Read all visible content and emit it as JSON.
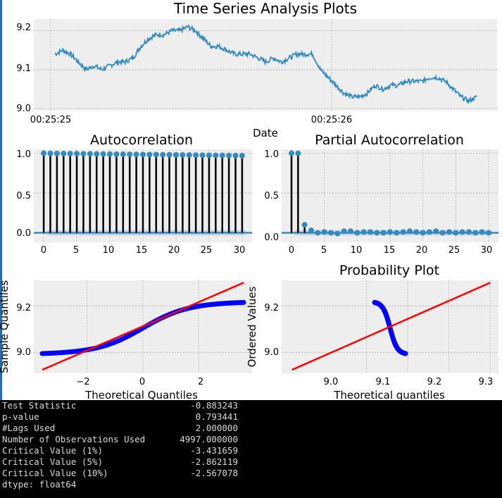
{
  "chart_data": [
    {
      "type": "line",
      "title": "Time Series Analysis Plots",
      "xlabel": "Date",
      "ylabel": "",
      "x_ticks": [
        "00:25:25",
        "00:25:26"
      ],
      "ylim": [
        8.995,
        9.23
      ],
      "y_ticks": [
        9.0,
        9.1,
        9.2
      ],
      "grid": true,
      "series": [
        {
          "values": [
            9.14,
            9.15,
            9.14,
            9.12,
            9.1,
            9.11,
            9.1,
            9.11,
            9.12,
            9.12,
            9.13,
            9.16,
            9.18,
            9.19,
            9.19,
            9.2,
            9.2,
            9.21,
            9.2,
            9.18,
            9.16,
            9.16,
            9.15,
            9.14,
            9.14,
            9.14,
            9.13,
            9.12,
            9.13,
            9.12,
            9.13,
            9.14,
            9.14,
            9.14,
            9.1,
            9.08,
            9.06,
            9.04,
            9.03,
            9.03,
            9.04,
            9.06,
            9.05,
            9.06,
            9.06,
            9.07,
            9.07,
            9.07,
            9.08,
            9.08,
            9.07,
            9.05,
            9.03,
            9.02,
            9.03
          ]
        }
      ]
    },
    {
      "type": "bar",
      "title": "Autocorrelation",
      "x": [
        0,
        1,
        2,
        3,
        4,
        5,
        6,
        7,
        8,
        9,
        10,
        11,
        12,
        13,
        14,
        15,
        16,
        17,
        18,
        19,
        20,
        21,
        22,
        23,
        24,
        25,
        26,
        27,
        28,
        29,
        30
      ],
      "values": [
        1.0,
        0.999,
        0.998,
        0.997,
        0.996,
        0.995,
        0.994,
        0.993,
        0.992,
        0.991,
        0.99,
        0.989,
        0.988,
        0.987,
        0.986,
        0.985,
        0.984,
        0.983,
        0.982,
        0.981,
        0.98,
        0.979,
        0.978,
        0.977,
        0.976,
        0.975,
        0.974,
        0.973,
        0.972,
        0.971,
        0.97
      ],
      "xlim": [
        -1.5,
        31.5
      ],
      "ylim": [
        -0.12,
        1.05
      ],
      "x_ticks": [
        0,
        5,
        10,
        15,
        20,
        25,
        30
      ],
      "y_ticks": [
        0.0,
        0.5,
        1.0
      ],
      "grid": true
    },
    {
      "type": "bar",
      "title": "Partial Autocorrelation",
      "x": [
        0,
        1,
        2,
        3,
        4,
        5,
        6,
        7,
        8,
        9,
        10,
        11,
        12,
        13,
        14,
        15,
        16,
        17,
        18,
        19,
        20,
        21,
        22,
        23,
        24,
        25,
        26,
        27,
        28,
        29,
        30
      ],
      "values": [
        1.0,
        1.0,
        0.1,
        0.03,
        0.0,
        0.01,
        0.0,
        -0.01,
        0.02,
        0.02,
        0.0,
        0.01,
        0.01,
        0.0,
        0.0,
        0.01,
        0.0,
        0.01,
        0.02,
        0.01,
        0.0,
        0.01,
        0.02,
        0.0,
        0.01,
        0.0,
        0.01,
        0.01,
        0.0,
        0.01,
        0.0
      ],
      "xlim": [
        -1.5,
        31.5
      ],
      "ylim": [
        -0.12,
        1.05
      ],
      "x_ticks": [
        0,
        5,
        10,
        15,
        20,
        25,
        30
      ],
      "y_ticks": [
        0.0,
        0.5,
        1.0
      ],
      "grid": true
    },
    {
      "type": "scatter",
      "title": "",
      "xlabel": "Theoretical Quantiles",
      "ylabel": "Sample Quantiles",
      "xlim": [
        -3.9,
        3.9
      ],
      "ylim": [
        8.91,
        9.31
      ],
      "x_ticks": [
        -2,
        0,
        2
      ],
      "y_ticks": [
        9.0,
        9.2
      ],
      "grid": true,
      "reference_line": {
        "x": [
          -3.6,
          3.6
        ],
        "y": [
          8.925,
          9.3
        ]
      }
    },
    {
      "type": "scatter",
      "title": "Probability Plot",
      "xlabel": "Theoretical quantiles",
      "ylabel": "Ordered Values",
      "xlim": [
        8.795,
        9.32
      ],
      "ylim": [
        8.91,
        9.31
      ],
      "x_ticks": [
        9.0,
        9.1,
        9.2,
        9.3
      ],
      "y_ticks": [
        9.0,
        9.2
      ],
      "grid": true,
      "reference_line": {
        "x": [
          8.82,
          9.3
        ],
        "y": [
          8.925,
          9.3
        ]
      }
    }
  ],
  "axis_tick_labels": {
    "ts_x": [
      "00:25:25",
      "00:25:26"
    ],
    "ts_y": [
      "9.2",
      "9.1",
      "9.0"
    ],
    "acf_y": [
      "1.0",
      "0.5",
      "0.0"
    ],
    "acf_x": [
      "0",
      "5",
      "10",
      "15",
      "20",
      "25",
      "30"
    ],
    "qq_y": [
      "9.2",
      "9.0"
    ],
    "qq_x": [
      "−2",
      "0",
      "2"
    ],
    "pp_x": [
      "9.0",
      "9.1",
      "9.2",
      "9.3"
    ]
  },
  "terminal": {
    "lines": [
      {
        "label": "Test Statistic",
        "value": "-0.883243"
      },
      {
        "label": "p-value",
        "value": "0.793441"
      },
      {
        "label": "#Lags Used",
        "value": "2.000000"
      },
      {
        "label": "Number of Observations Used",
        "value": "4997.000000"
      },
      {
        "label": "Critical Value (1%)",
        "value": "-3.431659"
      },
      {
        "label": "Critical Value (5%)",
        "value": "-2.862119"
      },
      {
        "label": "Critical Value (10%)",
        "value": "-2.567078"
      }
    ],
    "dtype": "dtype: float64"
  },
  "colors": {
    "axes_bg": "#eeeeee",
    "line": "#348abd",
    "stem": "#000000",
    "marker": "#348abd",
    "qq_points": "#0000ff",
    "fit_line": "#ff0000",
    "grid": "#b0b0b0",
    "confidence": "#b0c4de",
    "terminal_bg": "#000000",
    "terminal_text": "#d9d9d9"
  }
}
